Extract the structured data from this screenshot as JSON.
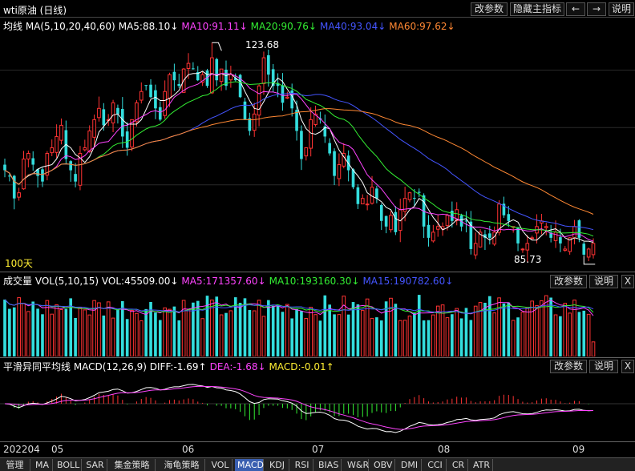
{
  "window": {
    "title": "wti原油 (日线)",
    "buttons": [
      "改参数",
      "隐藏主指标",
      "←",
      "→",
      "说明"
    ]
  },
  "main_panel": {
    "legend": [
      {
        "text": "均线 MA(5,10,20,40,60)",
        "color": "#ffffff"
      },
      {
        "text": "MA5:88.10↓",
        "color": "#ffffff"
      },
      {
        "text": "MA10:91.11↓",
        "color": "#ff44ff"
      },
      {
        "text": "MA20:90.76↓",
        "color": "#33ee33"
      },
      {
        "text": "MA40:93.04↓",
        "color": "#4455ff"
      },
      {
        "text": "MA60:97.62↓",
        "color": "#ff8833"
      }
    ],
    "high_label": "123.68",
    "low_label": "85.73",
    "days_label": "100天"
  },
  "volume_panel": {
    "legend": [
      {
        "text": "成交量 VOL(5,10,15) VOL:45509.00↓",
        "color": "#ffffff"
      },
      {
        "text": "MA5:171357.60↓",
        "color": "#ff44ff"
      },
      {
        "text": "MA10:193160.30↓",
        "color": "#33ee33"
      },
      {
        "text": "MA15:190782.60↓",
        "color": "#4455ff"
      }
    ],
    "buttons": [
      "改参数",
      "说明",
      "X"
    ]
  },
  "macd_panel": {
    "legend": [
      {
        "text": "平滑异同平均线 MACD(12,26,9) DIFF:-1.69↑",
        "color": "#ffffff"
      },
      {
        "text": "DEA:-1.68↓",
        "color": "#ff44ff"
      },
      {
        "text": "MACD:-0.01↑",
        "color": "#ffee33"
      }
    ],
    "buttons": [
      "改参数",
      "说明",
      "X"
    ]
  },
  "x_axis": {
    "labels": [
      "202204",
      "05",
      "06",
      "07",
      "08",
      "09"
    ]
  },
  "tabs": {
    "items": [
      "管理",
      "MA",
      "BOLL",
      "SAR",
      "集金策略",
      "海龟策略",
      "VOL",
      "MACD",
      "KDJ",
      "RSI",
      "BIAS",
      "W&R",
      "OBV",
      "DMI",
      "CCI",
      "CR",
      "ATR"
    ],
    "active": "MACD"
  },
  "chart_data": {
    "type": "candlestick",
    "period": "daily",
    "x_range": [
      "2022-04",
      "2022-09"
    ],
    "price_range": [
      85.73,
      123.68
    ],
    "price_high": 123.68,
    "price_low": 85.73,
    "closes": [
      101,
      100,
      96,
      97,
      103,
      104,
      102,
      100,
      99,
      104,
      105,
      107,
      109,
      103,
      101,
      99,
      104,
      105,
      108,
      110,
      112,
      109,
      110,
      113,
      111,
      107,
      105,
      110,
      113,
      115,
      116,
      114,
      112,
      110,
      115,
      118,
      117,
      116,
      119,
      120,
      119,
      117,
      118,
      116,
      121,
      117,
      119,
      116,
      118,
      117,
      114,
      110,
      108,
      111,
      116,
      121,
      118,
      116,
      116,
      113,
      114,
      112,
      108,
      103,
      105,
      110,
      111,
      110,
      107,
      104,
      100,
      102,
      104,
      101,
      98,
      95,
      96,
      95,
      98,
      96,
      92,
      91,
      93,
      90,
      94,
      96,
      97,
      96,
      97,
      91,
      89,
      90,
      91,
      91,
      93,
      92,
      94,
      91,
      92,
      87,
      88,
      90,
      89,
      89,
      90,
      95,
      93,
      92,
      91,
      88,
      87,
      88,
      89,
      91,
      92,
      91,
      89,
      90,
      88,
      87,
      89,
      91,
      89,
      86,
      87,
      88
    ],
    "ma_lines": [
      {
        "name": "MA5",
        "color": "#ffffff"
      },
      {
        "name": "MA10",
        "color": "#ff44ff"
      },
      {
        "name": "MA20",
        "color": "#33ee33"
      },
      {
        "name": "MA40",
        "color": "#4455ff"
      },
      {
        "name": "MA60",
        "color": "#ff8833"
      }
    ],
    "volume_ma": [
      {
        "name": "MA5",
        "color": "#ff44ff"
      },
      {
        "name": "MA10",
        "color": "#33ee33"
      },
      {
        "name": "MA15",
        "color": "#4455ff"
      }
    ],
    "macd_lines": [
      {
        "name": "DIFF",
        "color": "#ffffff"
      },
      {
        "name": "DEA",
        "color": "#ff44ff"
      }
    ],
    "colors": {
      "up": "#ff3333",
      "down": "#33dddd",
      "background": "#000000"
    }
  }
}
